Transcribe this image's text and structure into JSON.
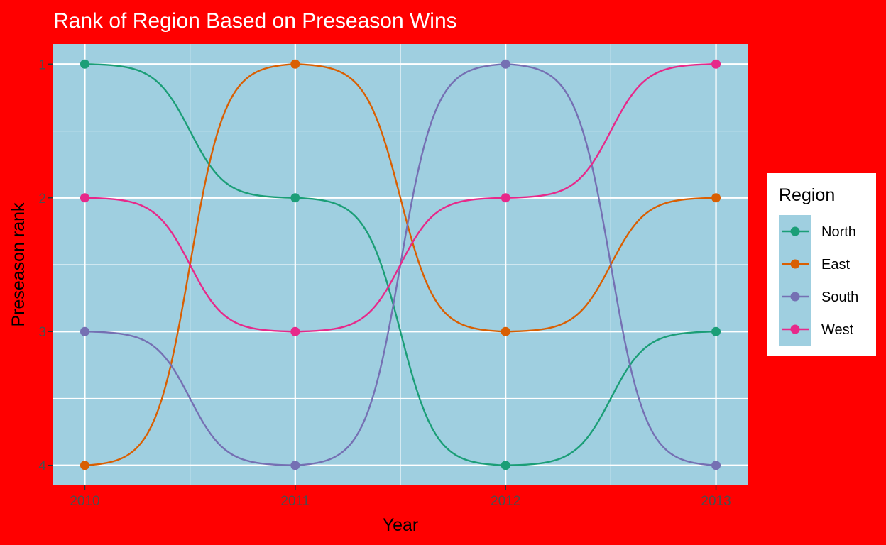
{
  "chart_data": {
    "type": "line",
    "title": "Rank of Region Based on Preseason Wins",
    "xlabel": "Year",
    "ylabel": "Preseason rank",
    "x": [
      2010,
      2011,
      2012,
      2013
    ],
    "xlim": [
      2009.85,
      2013.15
    ],
    "ylim": [
      4.15,
      0.85
    ],
    "y_reversed": true,
    "y_ticks": [
      1,
      2,
      3,
      4
    ],
    "smoothing": "sigmoid bump curves",
    "grid": true,
    "legend": {
      "title": "Region",
      "placement": "right"
    },
    "series": [
      {
        "name": "North",
        "color": "#1b9e77",
        "values": [
          1,
          2,
          4,
          3
        ]
      },
      {
        "name": "East",
        "color": "#d95f02",
        "values": [
          4,
          1,
          3,
          2
        ]
      },
      {
        "name": "South",
        "color": "#7570b3",
        "values": [
          3,
          4,
          1,
          4
        ]
      },
      {
        "name": "West",
        "color": "#e7298a",
        "values": [
          2,
          3,
          2,
          1
        ]
      }
    ],
    "colors": {
      "background": "#ff0000",
      "panel": "#9fcfe0",
      "grid": "#ffffff",
      "legend_key": "#9fcfe0"
    }
  }
}
